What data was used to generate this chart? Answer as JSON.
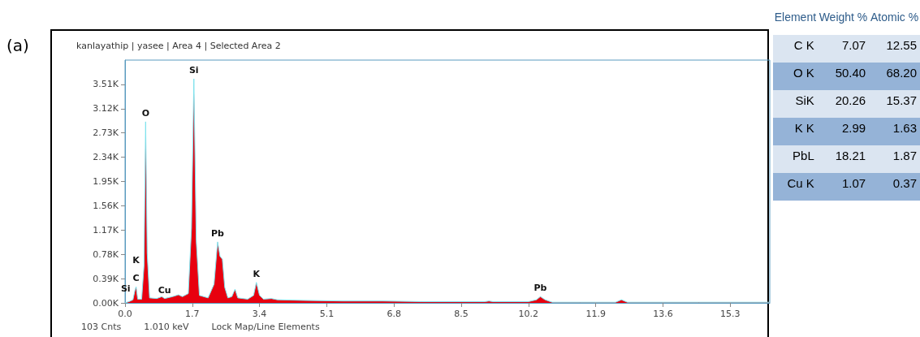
{
  "chart_data": [
    {
      "type": "area",
      "title": "kanlayathip | yasee | Area 4 | Selected Area 2",
      "x": [
        0,
        0.1,
        0.2,
        0.25,
        0.28,
        0.32,
        0.42,
        0.48,
        0.52,
        0.56,
        0.62,
        0.8,
        0.93,
        1.0,
        1.2,
        1.35,
        1.45,
        1.6,
        1.68,
        1.74,
        1.8,
        1.88,
        2.1,
        2.25,
        2.34,
        2.4,
        2.46,
        2.52,
        2.6,
        2.7,
        2.78,
        2.85,
        3.1,
        3.25,
        3.32,
        3.4,
        3.5,
        3.7,
        3.85,
        4.5,
        5.5,
        6.5,
        7.5,
        8.5,
        9.1,
        9.2,
        9.3,
        10.2,
        10.4,
        10.5,
        10.62,
        10.8,
        11.5,
        12.4,
        12.55,
        12.7,
        14.5,
        16.3
      ],
      "series": [
        {
          "color": "#e8000f",
          "values": [
            0,
            0.02,
            0.05,
            0.2,
            0.26,
            0.06,
            0.06,
            0.6,
            2.91,
            0.8,
            0.08,
            0.07,
            0.1,
            0.07,
            0.1,
            0.13,
            0.1,
            0.15,
            1.2,
            3.6,
            1.0,
            0.12,
            0.08,
            0.3,
            0.98,
            0.75,
            0.7,
            0.25,
            0.08,
            0.1,
            0.22,
            0.08,
            0.06,
            0.12,
            0.33,
            0.12,
            0.06,
            0.07,
            0.05,
            0.04,
            0.03,
            0.03,
            0.02,
            0.02,
            0.02,
            0.03,
            0.02,
            0.02,
            0.05,
            0.1,
            0.05,
            0.01,
            0.01,
            0.01,
            0.05,
            0.01,
            0.01,
            0.01
          ]
        }
      ],
      "xlim": [
        0,
        16.3
      ],
      "xticks": [
        {
          "value": 0,
          "label": "0.0"
        },
        1.7,
        3.4,
        5.1,
        6.8,
        8.5,
        10.2,
        11.9,
        13.6,
        15.3
      ],
      "ylim": [
        0,
        3.9
      ],
      "yticks": [
        {
          "value": 0,
          "label": "0.00K"
        },
        {
          "value": 0.39,
          "label": "0.39K"
        },
        {
          "value": 0.78,
          "label": "0.78K"
        },
        {
          "value": 1.17,
          "label": "1.17K"
        },
        {
          "value": 1.56,
          "label": "1.56K"
        },
        {
          "value": 1.95,
          "label": "1.95K"
        },
        {
          "value": 2.34,
          "label": "2.34K"
        },
        {
          "value": 2.73,
          "label": "2.73K"
        },
        {
          "value": 3.12,
          "label": "3.12K"
        },
        {
          "value": 3.51,
          "label": "3.51K"
        }
      ],
      "grid": false,
      "annotations": [
        "(a)",
        "103 Cnts",
        "1.010 keV",
        "Lock Map/Line Elements",
        {
          "text": "Si",
          "x": 0.2,
          "y": 0.05
        },
        {
          "text": "C",
          "x": 0.28,
          "y": 0.26
        },
        {
          "text": "K",
          "x": 0.28,
          "y": 0.26
        },
        {
          "text": "O",
          "x": 0.52,
          "y": 2.91
        },
        {
          "text": "Cu",
          "x": 1.0,
          "y": 0.07
        },
        {
          "text": "Si",
          "x": 1.74,
          "y": 3.6
        },
        {
          "text": "Pb",
          "x": 2.34,
          "y": 0.98
        },
        {
          "text": "K",
          "x": 3.32,
          "y": 0.33
        },
        {
          "text": "Pb",
          "x": 10.5,
          "y": 0.1
        }
      ]
    },
    {
      "type": "other",
      "xlabel": "Element",
      "categories": [
        "C K",
        "O K",
        "SiK",
        "K K",
        "PbL",
        "Cu K"
      ],
      "series": [
        {
          "name": "Weight %",
          "values": [
            7.07,
            50.4,
            20.26,
            2.99,
            18.21,
            1.07
          ],
          "value_labels": [
            "7.07",
            "50.40",
            "20.26",
            "2.99",
            "18.21",
            "1.07"
          ],
          "colors": [
            "#dbe5f1",
            "#95b3d7",
            "#dbe5f1",
            "#95b3d7",
            "#dbe5f1",
            "#95b3d7"
          ]
        },
        {
          "name": "Atomic %",
          "values": [
            12.55,
            68.2,
            15.37,
            1.63,
            1.87,
            0.37
          ],
          "value_labels": [
            "12.55",
            "68.20",
            "15.37",
            "1.63",
            "1.87",
            "0.37"
          ],
          "colors": [
            "#dbe5f1",
            "#95b3d7",
            "#dbe5f1",
            "#95b3d7",
            "#dbe5f1",
            "#95b3d7"
          ]
        }
      ]
    }
  ]
}
